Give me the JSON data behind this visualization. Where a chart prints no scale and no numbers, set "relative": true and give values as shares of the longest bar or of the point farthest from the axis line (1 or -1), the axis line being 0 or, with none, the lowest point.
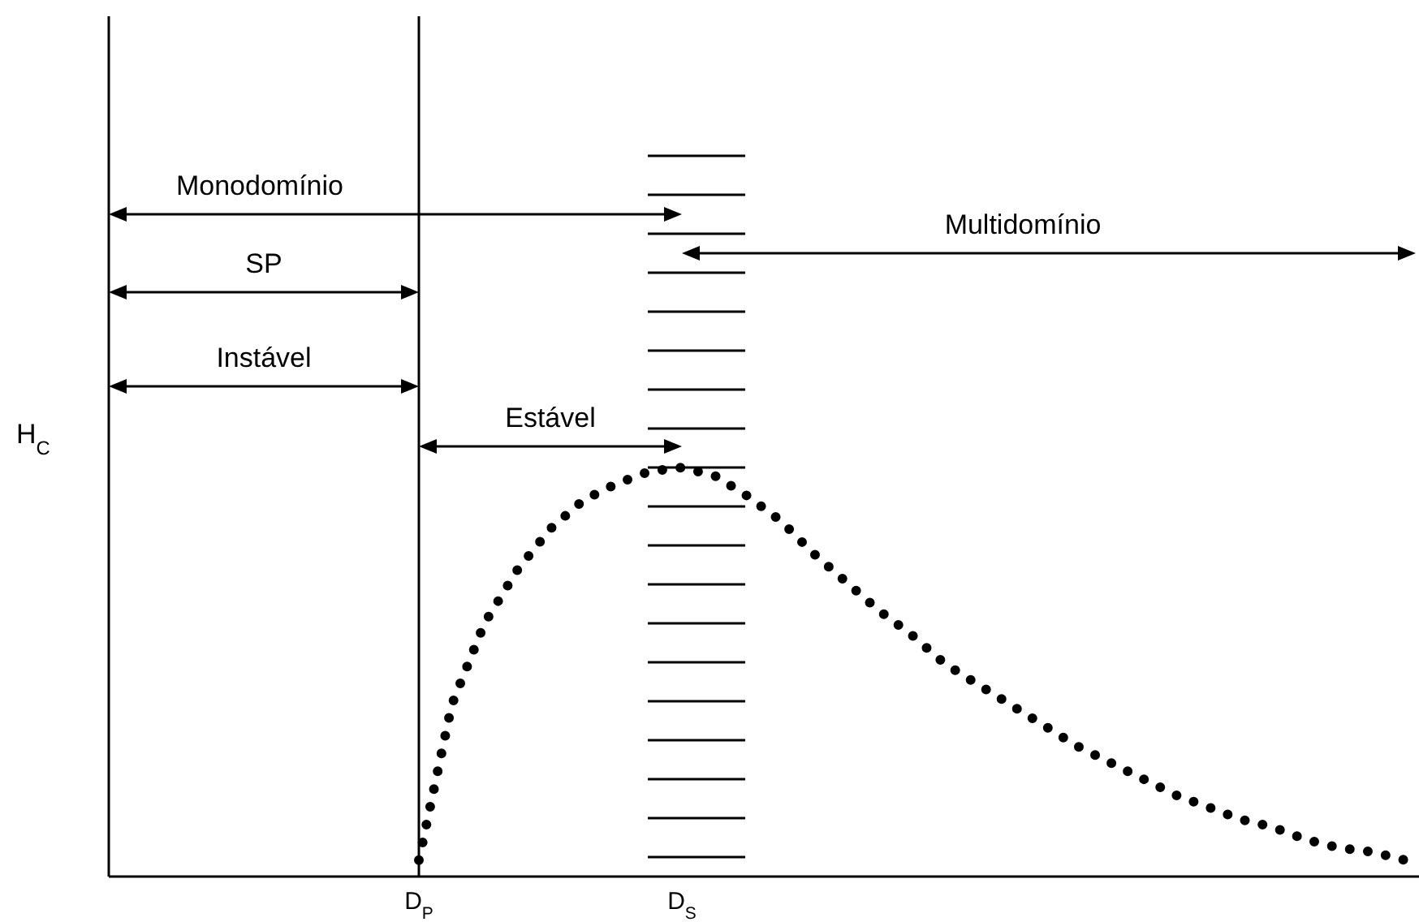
{
  "chart_data": {
    "type": "line",
    "relative": true,
    "ylabel": "H$_{C}$",
    "categories": [
      null,
      null,
      null,
      null,
      null,
      null,
      null,
      null,
      null,
      "D$_{P}$",
      null,
      null,
      null,
      null,
      null,
      null,
      null,
      "D$_{S}$",
      null,
      null,
      null,
      null,
      null,
      null,
      null,
      null,
      null,
      null,
      null,
      null,
      null,
      null,
      null,
      null,
      null,
      null,
      null,
      null,
      null,
      null
    ],
    "values": [
      null,
      null,
      null,
      null,
      null,
      null,
      null,
      null,
      null,
      0.04,
      0.42,
      0.62,
      0.75,
      0.85,
      0.92,
      0.96,
      0.99,
      1,
      0.98,
      0.93,
      0.87,
      0.79,
      0.72,
      0.65,
      0.59,
      0.52,
      0.47,
      0.42,
      0.37,
      0.32,
      0.28,
      0.24,
      0.2,
      0.17,
      0.14,
      0.12,
      0.09,
      0.07,
      0.06,
      0.04
    ],
    "color": "#000000",
    "line_style": "dotted",
    "marker": "none",
    "ref_lines": [
      {
        "axis": "x",
        "value": "D$_{P}$"
      }
    ],
    "annotations": [
      "Monodomínio",
      "Multidomínio",
      "SP",
      "Instável",
      "Estável"
    ]
  }
}
